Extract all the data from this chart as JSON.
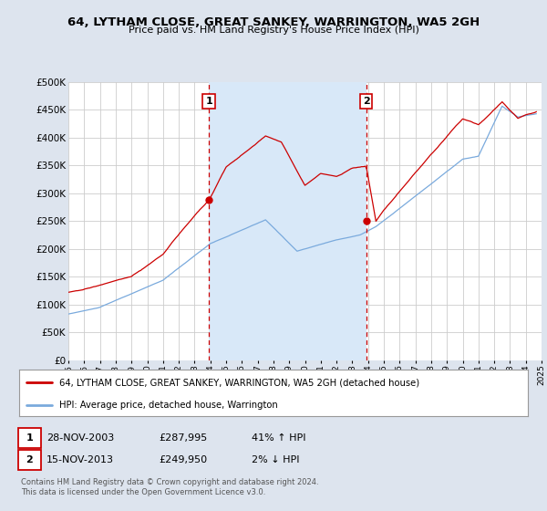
{
  "title": "64, LYTHAM CLOSE, GREAT SANKEY, WARRINGTON, WA5 2GH",
  "subtitle": "Price paid vs. HM Land Registry's House Price Index (HPI)",
  "ylim": [
    0,
    500000
  ],
  "yticks": [
    0,
    50000,
    100000,
    150000,
    200000,
    250000,
    300000,
    350000,
    400000,
    450000,
    500000
  ],
  "ytick_labels": [
    "£0",
    "£50K",
    "£100K",
    "£150K",
    "£200K",
    "£250K",
    "£300K",
    "£350K",
    "£400K",
    "£450K",
    "£500K"
  ],
  "bg_color": "#dde4ee",
  "plot_bg_color": "#ffffff",
  "grid_color": "#cccccc",
  "red_color": "#cc0000",
  "blue_color": "#7aaadd",
  "shade_color": "#d8e8f8",
  "sale1_date": 2003.91,
  "sale1_price": 287995,
  "sale2_date": 2013.88,
  "sale2_price": 249950,
  "legend_label_red": "64, LYTHAM CLOSE, GREAT SANKEY, WARRINGTON, WA5 2GH (detached house)",
  "legend_label_blue": "HPI: Average price, detached house, Warrington",
  "table_row1": [
    "1",
    "28-NOV-2003",
    "£287,995",
    "41% ↑ HPI"
  ],
  "table_row2": [
    "2",
    "15-NOV-2013",
    "£249,950",
    "2% ↓ HPI"
  ],
  "footer": "Contains HM Land Registry data © Crown copyright and database right 2024.\nThis data is licensed under the Open Government Licence v3.0.",
  "xmin": 1995,
  "xmax": 2025
}
